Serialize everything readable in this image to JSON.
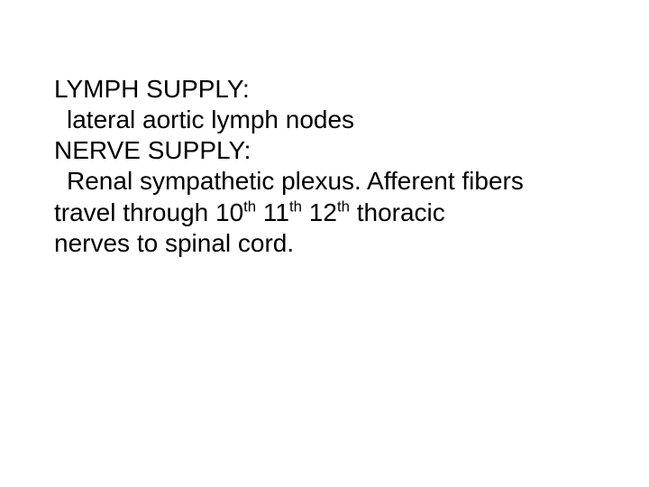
{
  "slide": {
    "background_color": "#ffffff",
    "text_color": "#000000",
    "font_family": "Arial",
    "font_size_pt": 21,
    "lines": {
      "l1": "LYMPH SUPPLY:",
      "l2": "lateral aortic lymph nodes",
      "l3": "NERVE SUPPLY:",
      "l4_pre": "Renal sympathetic plexus. Afferent fibers ",
      "l5_a": "travel through 10",
      "l5_sup1": "th",
      "l5_b": " 11",
      "l5_sup2": "th",
      "l5_c": " 12",
      "l5_sup3": "th",
      "l5_d": " thoracic ",
      "l6": "nerves to spinal cord."
    }
  }
}
